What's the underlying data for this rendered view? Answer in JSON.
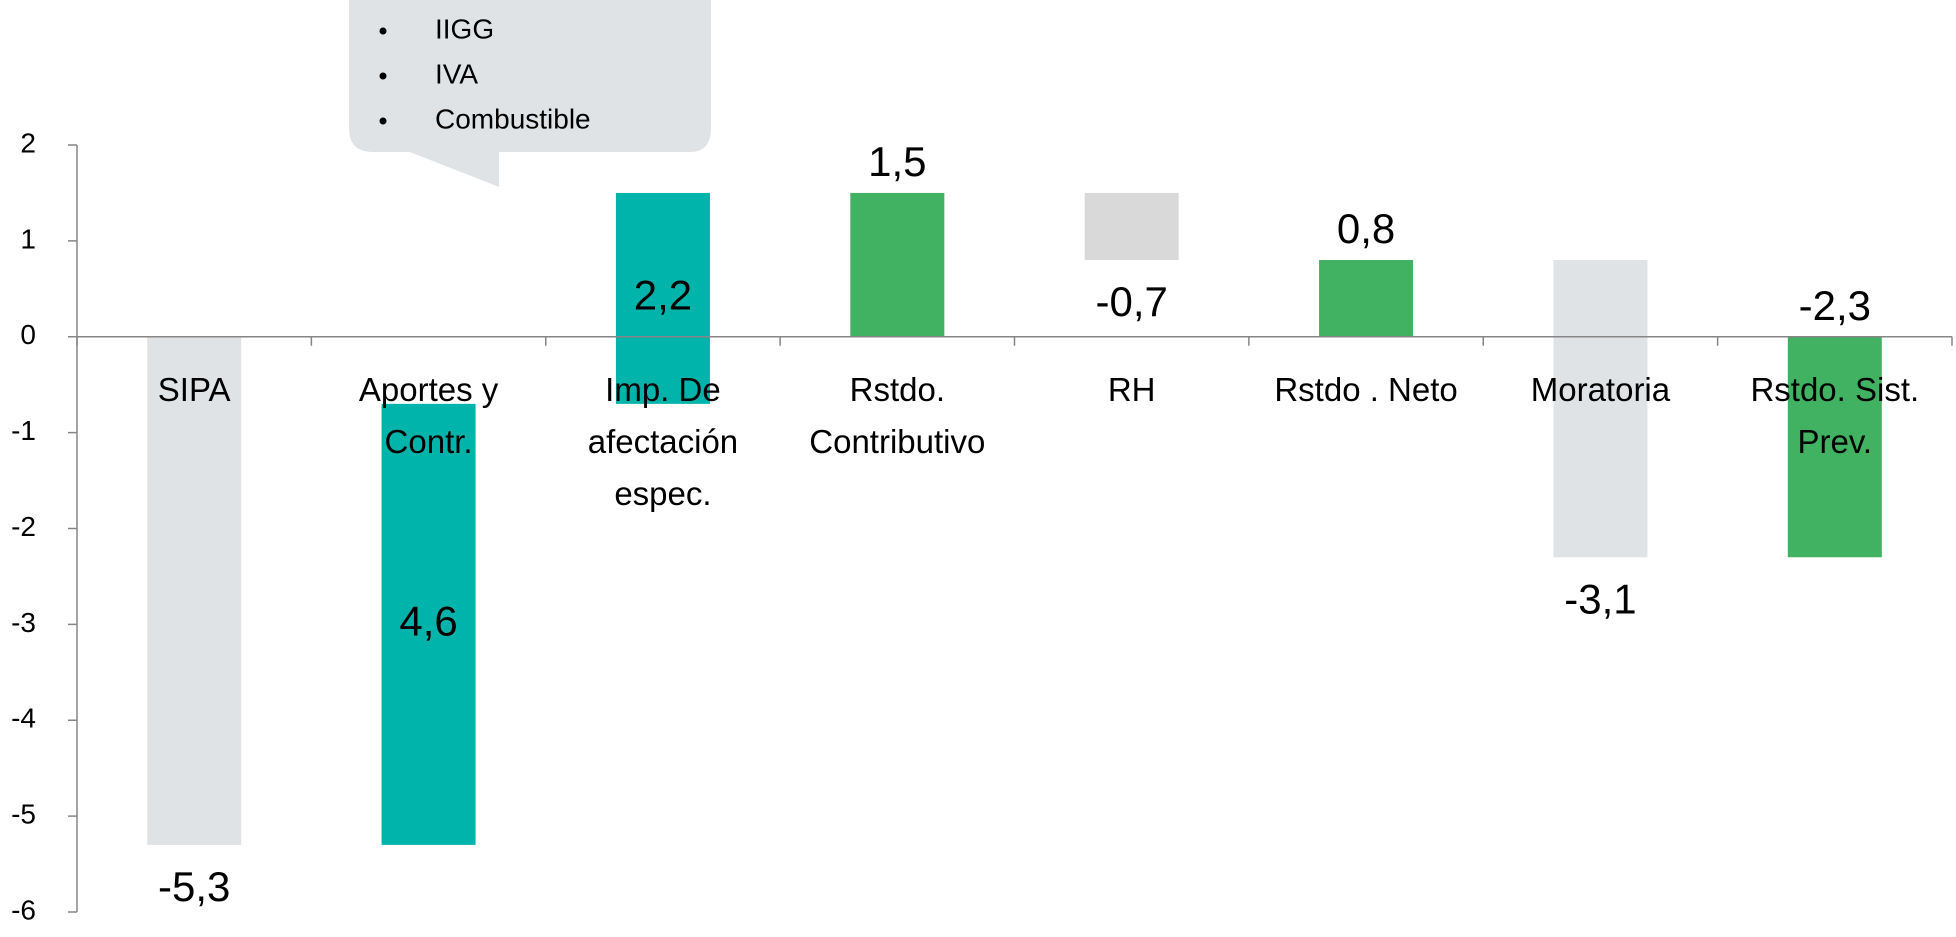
{
  "chart_data": {
    "type": "waterfall",
    "categories": [
      [
        "SIPA"
      ],
      [
        "Aportes y",
        "Contr."
      ],
      [
        "Imp. De",
        "afectación",
        "espec."
      ],
      [
        "Rstdo.",
        "Contributivo"
      ],
      [
        "RH"
      ],
      [
        "Rstdo . Neto"
      ],
      [
        "Moratoria"
      ],
      [
        "Rstdo. Sist.",
        "Prev."
      ]
    ],
    "values": [
      -5.3,
      4.6,
      2.2,
      1.5,
      -0.7,
      0.8,
      -3.1,
      -2.3
    ],
    "value_labels": [
      "-5,3",
      "4,6",
      "2,2",
      "1,5",
      "-0,7",
      "0,8",
      "-3,1",
      "-2,3"
    ],
    "totals": [
      false,
      false,
      false,
      true,
      false,
      true,
      false,
      true
    ],
    "colors": [
      "#dfe3e6",
      "#00b3ab",
      "#00b3ab",
      "#40b262",
      "#d9d9d9",
      "#40b262",
      "#dfe3e6",
      "#40b262"
    ],
    "ylim": [
      -6,
      2
    ],
    "yticks": [
      -6,
      -5,
      -4,
      -3,
      -2,
      -1,
      0,
      1,
      2
    ],
    "annotations": [
      "IIGG",
      "IVA",
      "Combustible"
    ]
  }
}
